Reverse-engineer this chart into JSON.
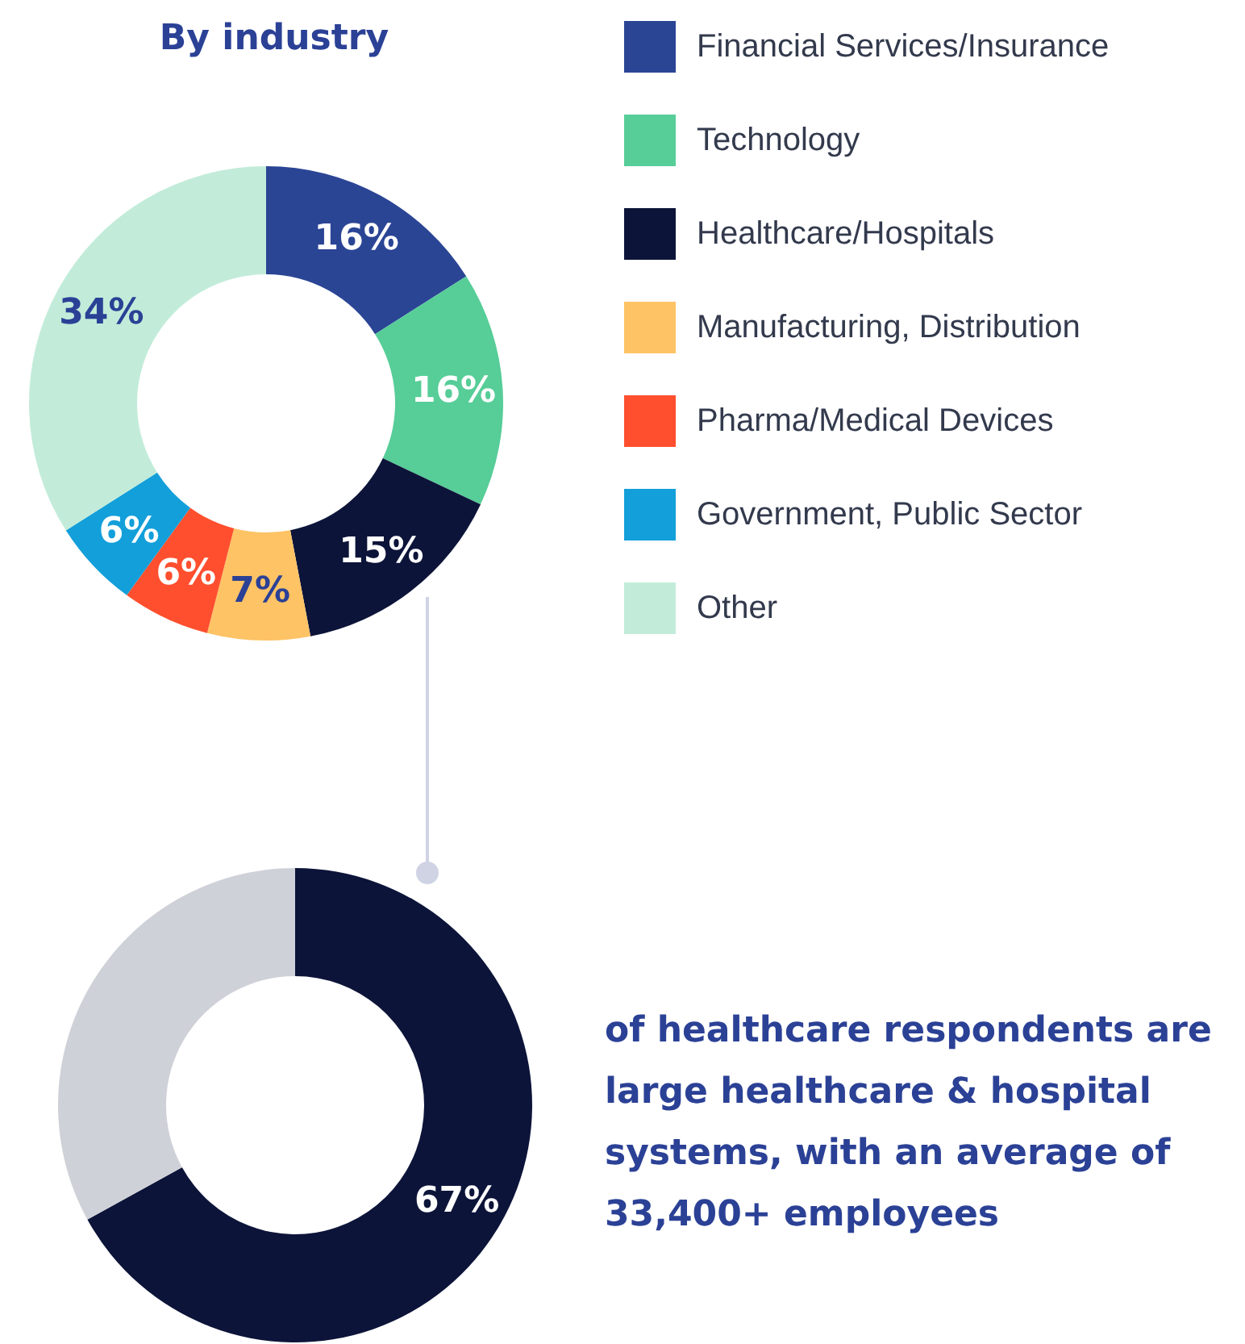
{
  "chart_data": [
    {
      "type": "donut",
      "title": "By industry",
      "categories": [
        "Financial Services/Insurance",
        "Technology",
        "Healthcare/Hospitals",
        "Manufacturing, Distribution",
        "Pharma/Medical Devices",
        "Government, Public Sector",
        "Other"
      ],
      "values": [
        16,
        16,
        15,
        7,
        6,
        6,
        34
      ],
      "value_labels": [
        "16%",
        "16%",
        "15%",
        "7%",
        "6%",
        "6%",
        "34%"
      ],
      "colors": [
        "#2b4595",
        "#57cd98",
        "#0d1439",
        "#fec365",
        "#ff4f2e",
        "#139fda",
        "#c2ecd9"
      ],
      "legend": "right"
    },
    {
      "type": "donut",
      "categories": [
        null,
        null
      ],
      "values": [
        67,
        33
      ],
      "value_labels": [
        "67%",
        null
      ],
      "colors": [
        "#0d1439",
        "#cfd1d8"
      ],
      "annotations": [
        "of healthcare respondents are large healthcare & hospital systems, with an average of 33,400+ employees"
      ],
      "legend": false
    }
  ]
}
